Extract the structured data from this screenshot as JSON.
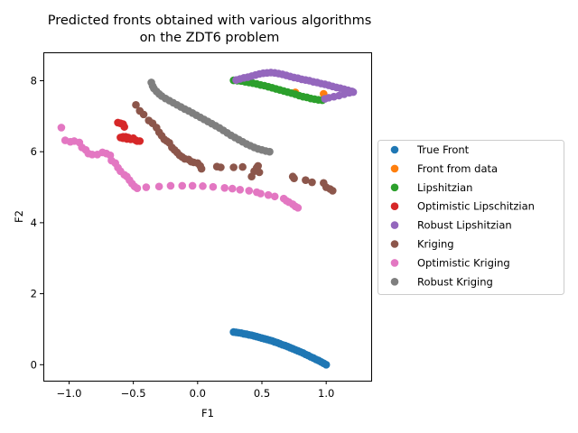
{
  "chart_data": {
    "type": "scatter",
    "title": [
      "Predicted fronts obtained with various algorithms",
      "on the ZDT6 problem"
    ],
    "xlabel": "F1",
    "ylabel": "F2",
    "xlim": [
      -1.2,
      1.35
    ],
    "ylim": [
      -0.45,
      8.8
    ],
    "xticks": [
      -1.0,
      -0.5,
      0.0,
      0.5,
      1.0
    ],
    "xtick_labels": [
      "−1.0",
      "−0.5",
      "0.0",
      "0.5",
      "1.0"
    ],
    "yticks": [
      0,
      2,
      4,
      6,
      8
    ],
    "ytick_labels": [
      "0",
      "2",
      "4",
      "6",
      "8"
    ],
    "grid": false,
    "legend_position": "outside-right",
    "series": [
      {
        "name": "True Front",
        "color": "#1f77b4",
        "points": [
          [
            0.28,
            0.92
          ],
          [
            0.3,
            0.91
          ],
          [
            0.32,
            0.9
          ],
          [
            0.34,
            0.89
          ],
          [
            0.36,
            0.87
          ],
          [
            0.38,
            0.86
          ],
          [
            0.4,
            0.84
          ],
          [
            0.42,
            0.83
          ],
          [
            0.44,
            0.81
          ],
          [
            0.46,
            0.79
          ],
          [
            0.48,
            0.77
          ],
          [
            0.5,
            0.75
          ],
          [
            0.52,
            0.73
          ],
          [
            0.54,
            0.71
          ],
          [
            0.56,
            0.69
          ],
          [
            0.58,
            0.67
          ],
          [
            0.6,
            0.64
          ],
          [
            0.62,
            0.62
          ],
          [
            0.64,
            0.59
          ],
          [
            0.66,
            0.56
          ],
          [
            0.68,
            0.54
          ],
          [
            0.7,
            0.51
          ],
          [
            0.72,
            0.48
          ],
          [
            0.74,
            0.45
          ],
          [
            0.76,
            0.42
          ],
          [
            0.78,
            0.39
          ],
          [
            0.8,
            0.36
          ],
          [
            0.82,
            0.33
          ],
          [
            0.84,
            0.29
          ],
          [
            0.86,
            0.26
          ],
          [
            0.88,
            0.22
          ],
          [
            0.9,
            0.19
          ],
          [
            0.92,
            0.15
          ],
          [
            0.94,
            0.12
          ],
          [
            0.96,
            0.08
          ],
          [
            0.98,
            0.04
          ],
          [
            1.0,
            0.0
          ]
        ]
      },
      {
        "name": "Front from data",
        "color": "#ff7f0e",
        "points": [
          [
            0.76,
            7.67
          ],
          [
            0.98,
            7.63
          ]
        ]
      },
      {
        "name": "Lipshitzian",
        "color": "#2ca02c",
        "points": [
          [
            0.28,
            8.01
          ],
          [
            0.31,
            8.0
          ],
          [
            0.34,
            7.99
          ],
          [
            0.37,
            7.97
          ],
          [
            0.4,
            7.95
          ],
          [
            0.43,
            7.93
          ],
          [
            0.46,
            7.91
          ],
          [
            0.49,
            7.88
          ],
          [
            0.52,
            7.86
          ],
          [
            0.55,
            7.83
          ],
          [
            0.58,
            7.8
          ],
          [
            0.61,
            7.77
          ],
          [
            0.64,
            7.74
          ],
          [
            0.67,
            7.71
          ],
          [
            0.7,
            7.68
          ],
          [
            0.73,
            7.65
          ],
          [
            0.76,
            7.62
          ],
          [
            0.79,
            7.58
          ],
          [
            0.82,
            7.55
          ],
          [
            0.85,
            7.53
          ],
          [
            0.88,
            7.5
          ],
          [
            0.91,
            7.48
          ],
          [
            0.94,
            7.46
          ],
          [
            0.97,
            7.45
          ]
        ]
      },
      {
        "name": "Optimistic Lipschitzian",
        "color": "#d62728",
        "points": [
          [
            -0.62,
            6.82
          ],
          [
            -0.6,
            6.8
          ],
          [
            -0.58,
            6.78
          ],
          [
            -0.57,
            6.7
          ],
          [
            -0.6,
            6.4
          ],
          [
            -0.58,
            6.38
          ],
          [
            -0.56,
            6.42
          ],
          [
            -0.54,
            6.4
          ],
          [
            -0.52,
            6.35
          ],
          [
            -0.5,
            6.38
          ],
          [
            -0.48,
            6.32
          ],
          [
            -0.47,
            6.3
          ],
          [
            -0.45,
            6.3
          ],
          [
            -0.58,
            6.42
          ],
          [
            -0.55,
            6.36
          ]
        ]
      },
      {
        "name": "Robust Lipshitzian",
        "color": "#9467bd",
        "points": [
          [
            0.3,
            8.02
          ],
          [
            0.33,
            8.05
          ],
          [
            0.36,
            8.08
          ],
          [
            0.39,
            8.1
          ],
          [
            0.42,
            8.13
          ],
          [
            0.45,
            8.16
          ],
          [
            0.48,
            8.19
          ],
          [
            0.51,
            8.21
          ],
          [
            0.54,
            8.22
          ],
          [
            0.57,
            8.23
          ],
          [
            0.6,
            8.22
          ],
          [
            0.63,
            8.2
          ],
          [
            0.66,
            8.18
          ],
          [
            0.69,
            8.15
          ],
          [
            0.72,
            8.12
          ],
          [
            0.75,
            8.09
          ],
          [
            0.78,
            8.07
          ],
          [
            0.81,
            8.04
          ],
          [
            0.84,
            8.02
          ],
          [
            0.87,
            8.0
          ],
          [
            0.9,
            7.97
          ],
          [
            0.93,
            7.95
          ],
          [
            0.96,
            7.92
          ],
          [
            0.99,
            7.9
          ],
          [
            1.02,
            7.87
          ],
          [
            1.05,
            7.84
          ],
          [
            1.08,
            7.81
          ],
          [
            1.11,
            7.79
          ],
          [
            1.14,
            7.76
          ],
          [
            1.17,
            7.73
          ],
          [
            1.2,
            7.7
          ],
          [
            1.18,
            7.66
          ],
          [
            1.14,
            7.62
          ],
          [
            1.1,
            7.58
          ],
          [
            1.06,
            7.55
          ],
          [
            1.02,
            7.52
          ],
          [
            0.99,
            7.49
          ],
          [
            1.21,
            7.68
          ]
        ]
      },
      {
        "name": "Kriging",
        "color": "#8c564b",
        "points": [
          [
            -0.48,
            7.32
          ],
          [
            -0.45,
            7.15
          ],
          [
            -0.42,
            7.05
          ],
          [
            -0.38,
            6.88
          ],
          [
            -0.35,
            6.8
          ],
          [
            -0.32,
            6.68
          ],
          [
            -0.3,
            6.55
          ],
          [
            -0.28,
            6.45
          ],
          [
            -0.26,
            6.35
          ],
          [
            -0.24,
            6.3
          ],
          [
            -0.22,
            6.25
          ],
          [
            -0.2,
            6.12
          ],
          [
            -0.18,
            6.05
          ],
          [
            -0.16,
            5.98
          ],
          [
            -0.14,
            5.9
          ],
          [
            -0.12,
            5.85
          ],
          [
            -0.1,
            5.8
          ],
          [
            -0.07,
            5.78
          ],
          [
            -0.05,
            5.72
          ],
          [
            -0.03,
            5.7
          ],
          [
            0.0,
            5.68
          ],
          [
            0.02,
            5.6
          ],
          [
            0.03,
            5.52
          ],
          [
            0.15,
            5.58
          ],
          [
            0.18,
            5.56
          ],
          [
            0.28,
            5.56
          ],
          [
            0.35,
            5.57
          ],
          [
            0.42,
            5.3
          ],
          [
            0.44,
            5.45
          ],
          [
            0.46,
            5.55
          ],
          [
            0.47,
            5.6
          ],
          [
            0.48,
            5.42
          ],
          [
            0.74,
            5.3
          ],
          [
            0.75,
            5.25
          ],
          [
            0.84,
            5.2
          ],
          [
            0.89,
            5.14
          ],
          [
            0.98,
            5.12
          ],
          [
            1.0,
            5.0
          ],
          [
            1.03,
            4.95
          ],
          [
            1.05,
            4.9
          ]
        ]
      },
      {
        "name": "Optimistic Kriging",
        "color": "#e377c2",
        "points": [
          [
            -1.06,
            6.68
          ],
          [
            -1.03,
            6.32
          ],
          [
            -0.99,
            6.28
          ],
          [
            -0.96,
            6.3
          ],
          [
            -0.92,
            6.26
          ],
          [
            -0.9,
            6.12
          ],
          [
            -0.87,
            6.05
          ],
          [
            -0.85,
            5.95
          ],
          [
            -0.82,
            5.92
          ],
          [
            -0.78,
            5.92
          ],
          [
            -0.74,
            5.98
          ],
          [
            -0.71,
            5.95
          ],
          [
            -0.68,
            5.9
          ],
          [
            -0.67,
            5.75
          ],
          [
            -0.64,
            5.68
          ],
          [
            -0.62,
            5.55
          ],
          [
            -0.6,
            5.45
          ],
          [
            -0.57,
            5.35
          ],
          [
            -0.55,
            5.3
          ],
          [
            -0.53,
            5.2
          ],
          [
            -0.51,
            5.1
          ],
          [
            -0.49,
            5.02
          ],
          [
            -0.47,
            4.97
          ],
          [
            -0.4,
            5.0
          ],
          [
            -0.3,
            5.02
          ],
          [
            -0.21,
            5.04
          ],
          [
            -0.12,
            5.04
          ],
          [
            -0.04,
            5.04
          ],
          [
            0.04,
            5.03
          ],
          [
            0.12,
            5.01
          ],
          [
            0.21,
            4.98
          ],
          [
            0.27,
            4.96
          ],
          [
            0.33,
            4.93
          ],
          [
            0.4,
            4.9
          ],
          [
            0.46,
            4.86
          ],
          [
            0.49,
            4.82
          ],
          [
            0.55,
            4.78
          ],
          [
            0.6,
            4.74
          ],
          [
            0.67,
            4.68
          ],
          [
            0.69,
            4.62
          ],
          [
            0.71,
            4.58
          ],
          [
            0.74,
            4.52
          ],
          [
            0.76,
            4.46
          ],
          [
            0.78,
            4.42
          ]
        ]
      },
      {
        "name": "Robust Kriging",
        "color": "#7f7f7f",
        "points": [
          [
            -0.36,
            7.95
          ],
          [
            -0.35,
            7.85
          ],
          [
            -0.34,
            7.78
          ],
          [
            -0.32,
            7.7
          ],
          [
            -0.3,
            7.63
          ],
          [
            -0.28,
            7.57
          ],
          [
            -0.25,
            7.5
          ],
          [
            -0.22,
            7.44
          ],
          [
            -0.19,
            7.38
          ],
          [
            -0.16,
            7.32
          ],
          [
            -0.13,
            7.26
          ],
          [
            -0.1,
            7.2
          ],
          [
            -0.07,
            7.15
          ],
          [
            -0.04,
            7.09
          ],
          [
            -0.01,
            7.03
          ],
          [
            0.02,
            6.97
          ],
          [
            0.05,
            6.91
          ],
          [
            0.08,
            6.85
          ],
          [
            0.11,
            6.79
          ],
          [
            0.14,
            6.73
          ],
          [
            0.17,
            6.67
          ],
          [
            0.2,
            6.6
          ],
          [
            0.23,
            6.53
          ],
          [
            0.26,
            6.46
          ],
          [
            0.29,
            6.4
          ],
          [
            0.32,
            6.34
          ],
          [
            0.35,
            6.28
          ],
          [
            0.38,
            6.22
          ],
          [
            0.41,
            6.17
          ],
          [
            0.44,
            6.12
          ],
          [
            0.47,
            6.08
          ],
          [
            0.5,
            6.05
          ],
          [
            0.53,
            6.02
          ],
          [
            0.56,
            6.0
          ]
        ]
      }
    ]
  }
}
